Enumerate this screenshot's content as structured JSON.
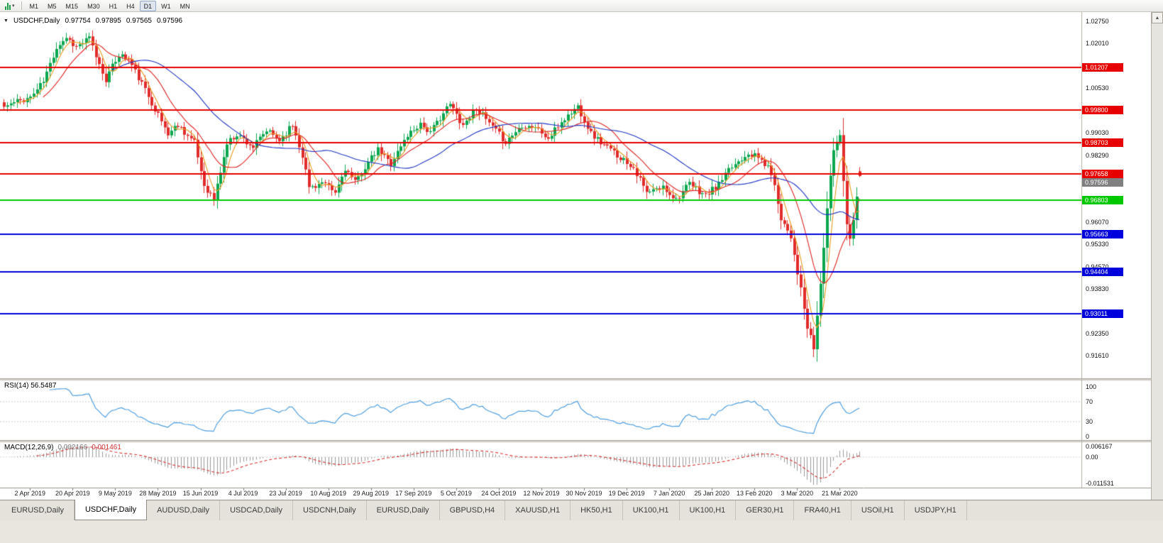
{
  "toolbar": {
    "timeframes": [
      "M1",
      "M5",
      "M15",
      "M30",
      "H1",
      "H4",
      "D1",
      "W1",
      "MN"
    ],
    "active_timeframe": "D1"
  },
  "icons": {
    "chart_marker": "▼",
    "dropdown_caret": "▾",
    "scroll_up": "▲"
  },
  "header": {
    "symbol": "USDCHF,Daily",
    "open": "0.97754",
    "high": "0.97895",
    "low": "0.97565",
    "close": "0.97596"
  },
  "price_axis": {
    "ticks": [
      "1.02750",
      "1.02010",
      "1.00530",
      "0.99030",
      "0.98290",
      "0.96070",
      "0.95330",
      "0.94570",
      "0.93830",
      "0.92350",
      "0.91610"
    ],
    "current_price_label": "0.97596",
    "current_price_color": "#808080"
  },
  "panels": {
    "rsi": {
      "label_text": "RSI(14) 56.5487",
      "ticks": [
        {
          "value": 100,
          "label": "100"
        },
        {
          "value": 70,
          "label": "70"
        },
        {
          "value": 30,
          "label": "30"
        },
        {
          "value": 0,
          "label": "0"
        }
      ]
    },
    "macd": {
      "name": "MACD(12,26,9)",
      "main_value": "0.002166",
      "signal_value": "0.001461",
      "ticks": {
        "max": "0.006167",
        "zero": "0.00",
        "min": "-0.011531"
      }
    }
  },
  "date_axis": [
    "2 Apr 2019",
    "20 Apr 2019",
    "9 May 2019",
    "28 May 2019",
    "15 Jun 2019",
    "4 Jul 2019",
    "23 Jul 2019",
    "10 Aug 2019",
    "29 Aug 2019",
    "17 Sep 2019",
    "5 Oct 2019",
    "24 Oct 2019",
    "12 Nov 2019",
    "30 Nov 2019",
    "19 Dec 2019",
    "7 Jan 2020",
    "25 Jan 2020",
    "13 Feb 2020",
    "3 Mar 2020",
    "21 Mar 2020"
  ],
  "tabs": {
    "active_index": 1,
    "items": [
      "EURUSD,Daily",
      "USDCHF,Daily",
      "AUDUSD,Daily",
      "USDCAD,Daily",
      "USDCNH,Daily",
      "EURUSD,Daily",
      "GBPUSD,H4",
      "XAUUSD,H1",
      "HK50,H1",
      "UK100,H1",
      "UK100,H1",
      "GER30,H1",
      "FRA40,H1",
      "USOil,H1",
      "USDJPY,H1"
    ],
    "note": "active tab is USDCHF,Daily"
  },
  "chart_data": {
    "type": "candlestick",
    "symbol": "USDCHF",
    "timeframe": "Daily",
    "title": "USDCHF,Daily 0.97754 0.97895 0.97565 0.97596",
    "ylim": [
      0.9086,
      1.0306
    ],
    "last_ohlc": {
      "open": 0.97754,
      "high": 0.97895,
      "low": 0.97565,
      "close": 0.97596
    },
    "num_candles": 262,
    "date_label_start_index": 8,
    "up_color": "#0DA750",
    "down_color": "#E22C2C",
    "noise_seed": 11,
    "noise_amp": 0.0011,
    "wick_amp": 0.0013,
    "price_path_anchors": [
      [
        0,
        0.999
      ],
      [
        4,
        1.0008
      ],
      [
        8,
        1.0022
      ],
      [
        12,
        1.0075
      ],
      [
        16,
        1.019
      ],
      [
        19,
        1.0222
      ],
      [
        22,
        1.019
      ],
      [
        26,
        1.0218
      ],
      [
        29,
        1.013
      ],
      [
        31,
        1.0082
      ],
      [
        35,
        1.0165
      ],
      [
        38,
        1.0148
      ],
      [
        45,
        1.0005
      ],
      [
        50,
        0.99
      ],
      [
        53,
        0.9932
      ],
      [
        58,
        0.987
      ],
      [
        61,
        0.973
      ],
      [
        64,
        0.9682
      ],
      [
        68,
        0.9868
      ],
      [
        71,
        0.99
      ],
      [
        76,
        0.9856
      ],
      [
        80,
        0.991
      ],
      [
        84,
        0.988
      ],
      [
        88,
        0.993
      ],
      [
        91,
        0.983
      ],
      [
        93,
        0.9722
      ],
      [
        97,
        0.9736
      ],
      [
        101,
        0.9702
      ],
      [
        104,
        0.9786
      ],
      [
        107,
        0.9736
      ],
      [
        110,
        0.979
      ],
      [
        114,
        0.9846
      ],
      [
        118,
        0.9802
      ],
      [
        123,
        0.9896
      ],
      [
        127,
        0.9936
      ],
      [
        130,
        0.9902
      ],
      [
        133,
        0.9956
      ],
      [
        136,
        0.9998
      ],
      [
        140,
        0.993
      ],
      [
        144,
        0.9988
      ],
      [
        149,
        0.992
      ],
      [
        153,
        0.9874
      ],
      [
        158,
        0.993
      ],
      [
        162,
        0.9924
      ],
      [
        166,
        0.9882
      ],
      [
        170,
        0.994
      ],
      [
        175,
        0.9992
      ],
      [
        179,
        0.9902
      ],
      [
        183,
        0.9862
      ],
      [
        188,
        0.9822
      ],
      [
        192,
        0.979
      ],
      [
        196,
        0.9702
      ],
      [
        201,
        0.9722
      ],
      [
        205,
        0.9684
      ],
      [
        209,
        0.9732
      ],
      [
        214,
        0.9694
      ],
      [
        218,
        0.9732
      ],
      [
        222,
        0.979
      ],
      [
        227,
        0.984
      ],
      [
        231,
        0.9812
      ],
      [
        234,
        0.9772
      ],
      [
        237,
        0.9622
      ],
      [
        240,
        0.956
      ],
      [
        243,
        0.938
      ],
      [
        245,
        0.9252
      ],
      [
        247,
        0.9186
      ],
      [
        249,
        0.94
      ],
      [
        251,
        0.9652
      ],
      [
        253,
        0.985
      ],
      [
        255,
        0.9898
      ],
      [
        257,
        0.9605
      ],
      [
        258,
        0.9548
      ],
      [
        260,
        0.97
      ],
      [
        261,
        0.97596
      ]
    ],
    "moving_averages": [
      {
        "period": 5,
        "color": "#E89B1E"
      },
      {
        "period": 13,
        "color": "#E02424"
      },
      {
        "period": 34,
        "color": "#1F35C4"
      }
    ],
    "levels": [
      {
        "price": 1.01207,
        "label": "1.01207",
        "color": "#E60000"
      },
      {
        "price": 0.998,
        "label": "0.99800",
        "color": "#E60000"
      },
      {
        "price": 0.98703,
        "label": "0.98703",
        "color": "#E60000"
      },
      {
        "price": 0.97658,
        "label": "0.97658",
        "color": "#E60000"
      },
      {
        "price": 0.96803,
        "label": "0.96803",
        "color": "#00C800"
      },
      {
        "price": 0.95663,
        "label": "0.95663",
        "color": "#0000DC"
      },
      {
        "price": 0.94404,
        "label": "0.94404",
        "color": "#0000DC"
      },
      {
        "price": 0.93011,
        "label": "0.93011",
        "color": "#0000DC"
      }
    ],
    "indicators": {
      "rsi": {
        "period": 14,
        "value": 56.5487,
        "range": [
          0,
          100
        ],
        "levels": [
          70,
          30
        ],
        "color": "#4F9FE0"
      },
      "macd": {
        "fast": 12,
        "slow": 26,
        "signal": 9,
        "main_value": 0.002166,
        "signal_value": 0.001461,
        "histogram_color": "#9A9A9A",
        "signal_color": "#D43030"
      }
    }
  }
}
